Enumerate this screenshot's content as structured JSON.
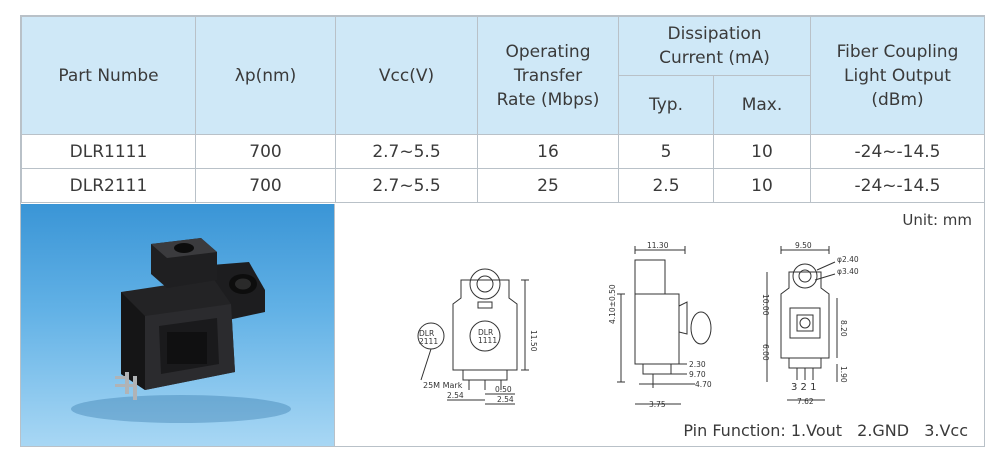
{
  "table": {
    "headers": {
      "part": "Part Numbe",
      "lambda": "λp(nm)",
      "vcc": "Vcc(V)",
      "rate_line1": "Operating",
      "rate_line2": "Transfer",
      "rate_line3": "Rate (Mbps)",
      "diss_line1": "Dissipation",
      "diss_line2": "Current (mA)",
      "typ": "Typ.",
      "max": "Max.",
      "fiber_line1": "Fiber Coupling",
      "fiber_line2": "Light Output",
      "fiber_line3": "(dBm)"
    },
    "rows": [
      {
        "part": "DLR1111",
        "lambda": "700",
        "vcc": "2.7~5.5",
        "rate": "16",
        "typ": "5",
        "max": "10",
        "fiber": "-24~-14.5"
      },
      {
        "part": "DLR2111",
        "lambda": "700",
        "vcc": "2.7~5.5",
        "rate": "25",
        "typ": "2.5",
        "max": "10",
        "fiber": "-24~-14.5"
      }
    ]
  },
  "drawing": {
    "unit": "Unit:  mm",
    "mark_line1": "DLR",
    "mark_line2": "2111",
    "mark_label": "25M Mark",
    "body_mark_line1": "DLR",
    "body_mark_line2": "1111",
    "dims": {
      "d1150": "11.50",
      "d050": "0.50",
      "d254a": "2.54",
      "d254b": "2.54",
      "d1130": "11.30",
      "d410": "4.10±0.50",
      "d230": "2.30",
      "d970": "9.70",
      "d470": "4.70",
      "d375": "3.75",
      "d950": "9.50",
      "d240": "φ2.40",
      "d340": "φ3.40",
      "d1000": "10.00",
      "d600": "6.00",
      "d820": "8.20",
      "d190": "1.90",
      "d762": "7.62",
      "pins": "3 2 1"
    },
    "pin_function": {
      "p1": "Pin Function: 1.Vout",
      "p2": "2.GND",
      "p3": "3.Vcc"
    }
  }
}
